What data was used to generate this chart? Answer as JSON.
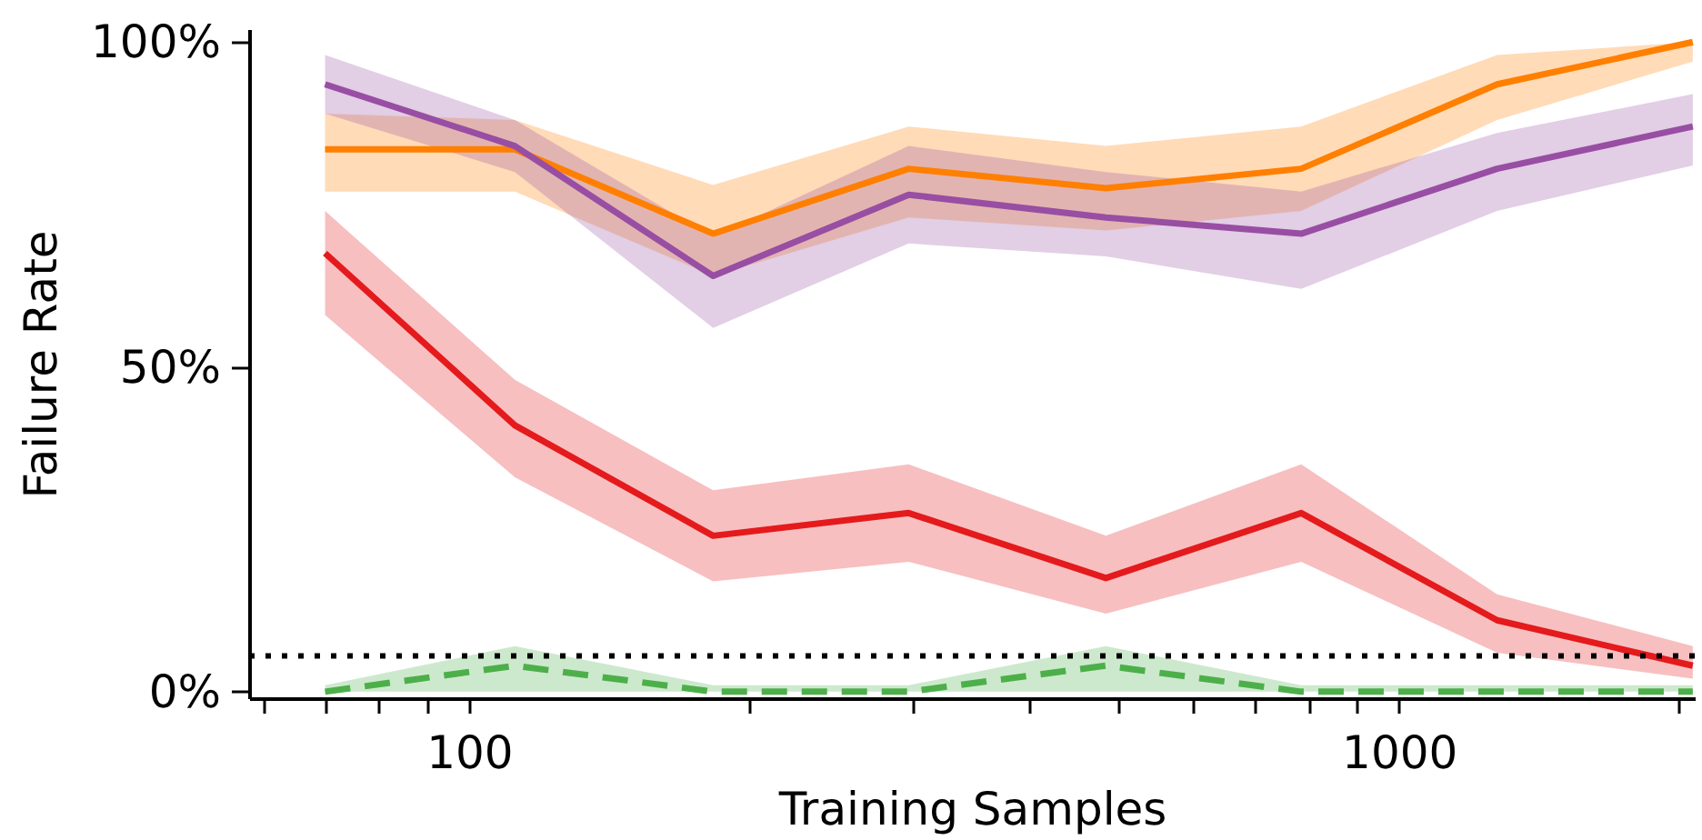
{
  "chart_data": {
    "type": "line",
    "xlabel": "Training Samples",
    "ylabel": "Failure Rate",
    "x": [
      70,
      112,
      183,
      297,
      484,
      785,
      1275,
      2070
    ],
    "log": "x",
    "xlim": [
      58,
      2080
    ],
    "xticks": [
      {
        "value": 60,
        "label": null
      },
      {
        "value": 70,
        "label": null
      },
      {
        "value": 80,
        "label": null
      },
      {
        "value": 90,
        "label": null
      },
      100,
      {
        "value": 200,
        "label": null
      },
      {
        "value": 300,
        "label": null
      },
      {
        "value": 400,
        "label": null
      },
      {
        "value": 500,
        "label": null
      },
      {
        "value": 600,
        "label": null
      },
      {
        "value": 700,
        "label": null
      },
      {
        "value": 800,
        "label": null
      },
      {
        "value": 900,
        "label": null
      },
      1000,
      {
        "value": 2000,
        "label": null
      }
    ],
    "ylim": [
      -1,
      102
    ],
    "yticks": [
      {
        "value": 0,
        "label": "0%"
      },
      {
        "value": 50,
        "label": "50%"
      },
      {
        "value": 100,
        "label": "100%"
      }
    ],
    "grid": false,
    "marker": "none",
    "series": [
      {
        "color": "#ff7f00",
        "line_style": "solid",
        "values": [
          83.5,
          83.5,
          70.5,
          80.5,
          77.5,
          80.5,
          93.5,
          100
        ],
        "lower": [
          77,
          77,
          64,
          73,
          71,
          74,
          88,
          97
        ],
        "upper": [
          89,
          88,
          78,
          87,
          84,
          87,
          98,
          100
        ]
      },
      {
        "color": "#984ea3",
        "line_style": "solid",
        "values": [
          93.5,
          84,
          64,
          76.5,
          73,
          70.5,
          80.5,
          87
        ],
        "lower": [
          89,
          80,
          56,
          69,
          67,
          62,
          74,
          81
        ],
        "upper": [
          98,
          88,
          70,
          84,
          80,
          77,
          86,
          92
        ]
      },
      {
        "color": "#e41a1c",
        "line_style": "solid",
        "values": [
          67.5,
          41,
          24,
          27.5,
          17.5,
          27.5,
          11,
          4
        ],
        "lower": [
          58,
          33,
          17,
          20,
          12,
          20,
          6,
          2
        ],
        "upper": [
          74,
          48,
          31,
          35,
          24,
          35,
          15,
          7
        ]
      },
      {
        "color": "#4daf4a",
        "line_style": "dashed",
        "values": [
          0,
          4,
          0,
          0,
          4,
          0,
          0,
          0
        ],
        "lower": [
          0,
          0,
          0,
          0,
          0,
          0,
          0,
          0
        ],
        "upper": [
          1,
          7,
          1,
          1,
          7,
          1,
          1,
          1
        ]
      }
    ],
    "ref_lines": [
      {
        "axis": "y",
        "value": 5.5,
        "color": "#000000",
        "line_style": "dotted"
      }
    ]
  }
}
